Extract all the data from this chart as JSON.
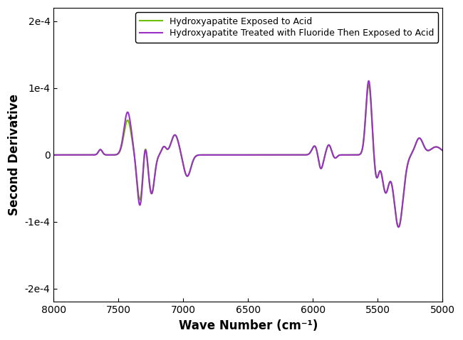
{
  "title": "",
  "xlabel": "Wave Number (cm⁻¹)",
  "ylabel": "Second Derivative",
  "xlim": [
    8000,
    5000
  ],
  "ylim": [
    -0.00022,
    0.00022
  ],
  "xticks": [
    8000,
    7500,
    7000,
    6500,
    6000,
    5500,
    5000
  ],
  "yticks": [
    -0.0002,
    -0.0001,
    0,
    0.0001,
    0.0002
  ],
  "line1_color": "#9B30C8",
  "line2_color": "#6BBF00",
  "line1_label": "Hydroxyapatite Treated with Fluoride Then Exposed to Acid",
  "line2_label": "Hydroxyapatite Exposed to Acid",
  "linewidth": 1.5,
  "legend_fontsize": 9,
  "axis_fontsize": 12,
  "tick_fontsize": 10,
  "background_color": "#ffffff"
}
